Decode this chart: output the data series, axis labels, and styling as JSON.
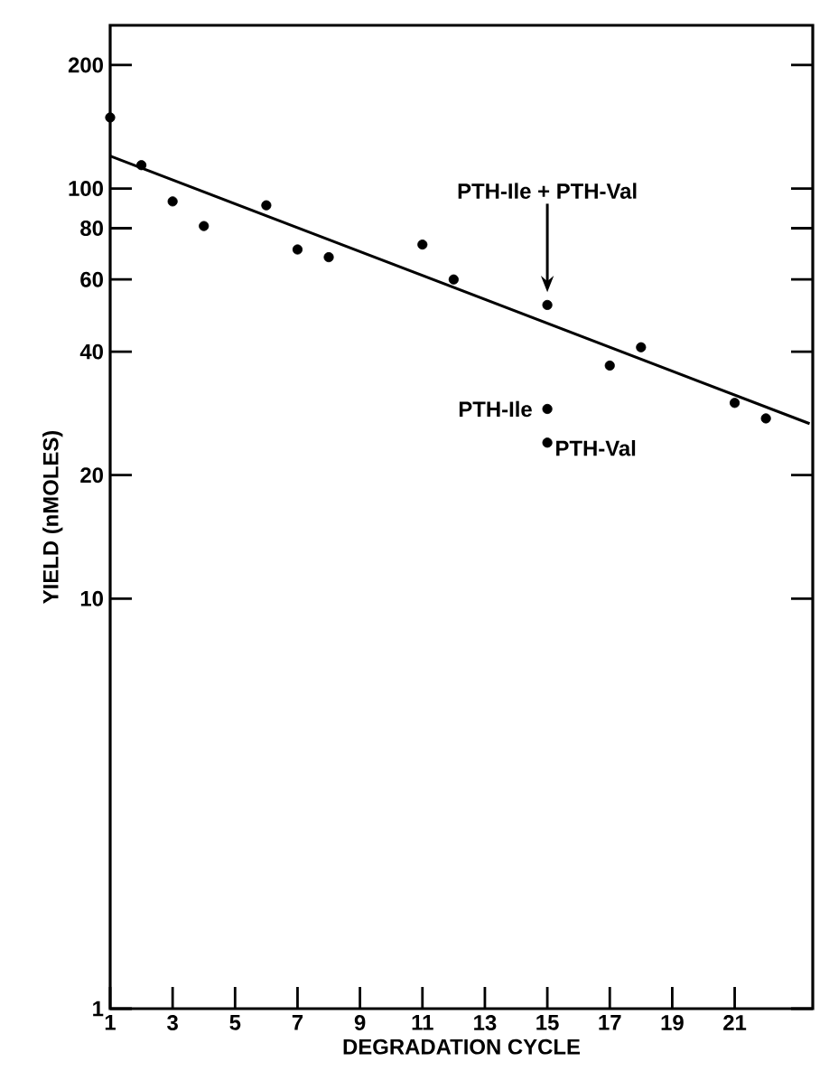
{
  "chart_data": {
    "type": "scatter",
    "xlabel": "DEGRADATION CYCLE",
    "ylabel": "YIELD (nMOLES)",
    "log": "y",
    "xlim": [
      1,
      23.5
    ],
    "ylim": [
      1,
      250
    ],
    "xticks": [
      1,
      3,
      5,
      7,
      9,
      11,
      13,
      15,
      17,
      19,
      21
    ],
    "yticks": [
      1,
      10,
      20,
      40,
      60,
      80,
      100,
      200
    ],
    "series": [
      {
        "marker": "circle",
        "color": "#000000",
        "x": [
          1,
          2,
          3,
          4,
          6,
          7,
          8,
          11,
          12,
          15,
          17,
          18,
          21,
          22,
          15,
          15
        ],
        "values": [
          149,
          114,
          93,
          81,
          91,
          71,
          68,
          73,
          60,
          52,
          37,
          41,
          30,
          27.5,
          29,
          24
        ]
      },
      {
        "type": "line",
        "marker": "none",
        "color": "#000000",
        "x": [
          1,
          23.4
        ],
        "values": [
          120,
          26.7
        ]
      }
    ],
    "annotations": [
      "PTH-Ile + PTH-Val",
      {
        "text": "PTH-Ile",
        "x": 15,
        "y": 29
      },
      {
        "text": "PTH-Val",
        "x": 15,
        "y": 24
      }
    ]
  }
}
